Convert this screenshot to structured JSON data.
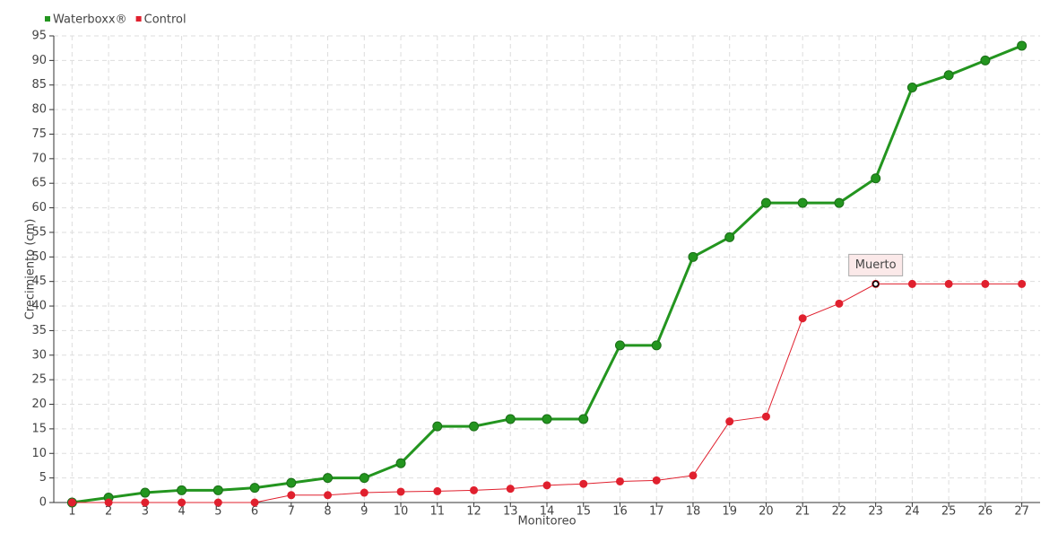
{
  "chart_data": {
    "type": "line",
    "x_label": "Monitoreo",
    "y_label": "Crecimiento (cm)",
    "categories": [
      "1",
      "2",
      "3",
      "4",
      "5",
      "6",
      "7",
      "8",
      "9",
      "10",
      "11",
      "12",
      "13",
      "14",
      "15",
      "16",
      "17",
      "18",
      "19",
      "20",
      "21",
      "22",
      "23",
      "24",
      "25",
      "26",
      "27"
    ],
    "series": [
      {
        "name": "Waterboxx®",
        "color": "#23951f",
        "values": [
          0,
          1,
          2,
          2.5,
          2.5,
          3,
          4,
          5,
          5,
          8,
          15.5,
          15.5,
          17,
          17,
          17,
          32,
          32,
          50,
          54,
          61,
          61,
          61,
          66,
          84.5,
          87,
          90,
          93
        ]
      },
      {
        "name": "Control",
        "color": "#e0202e",
        "values": [
          0,
          0,
          0,
          0,
          0,
          0,
          1.5,
          1.5,
          2,
          2.2,
          2.3,
          2.5,
          2.8,
          3.5,
          3.8,
          4.3,
          4.5,
          5.5,
          16.5,
          17.5,
          37.5,
          40.5,
          44.5,
          44.5,
          44.5,
          44.5,
          44.5
        ]
      }
    ],
    "annotations": [
      {
        "text": "Muerto",
        "series": "Control",
        "category": "23"
      }
    ],
    "ylim": [
      0,
      95
    ],
    "yticks": [
      0,
      5,
      10,
      15,
      20,
      25,
      30,
      35,
      40,
      45,
      50,
      55,
      60,
      65,
      70,
      75,
      80,
      85,
      90,
      95
    ],
    "grid": true,
    "legend": "top-left"
  }
}
